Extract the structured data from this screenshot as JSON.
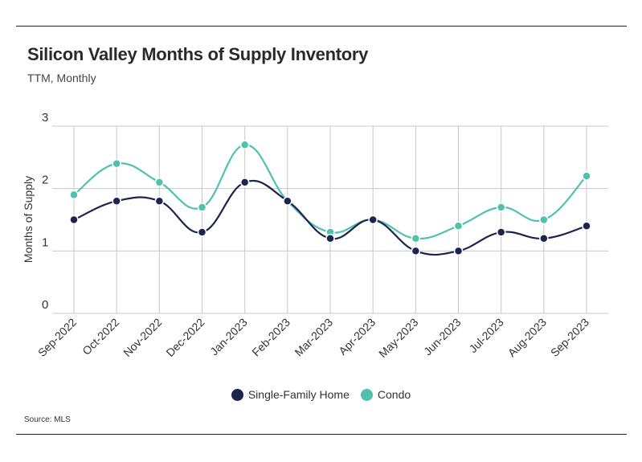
{
  "header": {
    "title": "Silicon Valley Months of Supply Inventory",
    "subtitle": "TTM, Monthly"
  },
  "footer": {
    "source": "Source:  MLS"
  },
  "colors": {
    "single_family": "#1b2550",
    "condo": "#4fc2ad",
    "grid": "#c8c8c8",
    "axis_text": "#333333"
  },
  "chart_data": {
    "type": "line",
    "title": "Silicon Valley Months of Supply Inventory",
    "subtitle": "TTM, Monthly",
    "xlabel": "",
    "ylabel": "Months of Supply",
    "ylim": [
      0,
      3
    ],
    "yticks": [
      0,
      1,
      2,
      3
    ],
    "grid": "on",
    "legend_position": "bottom",
    "categories": [
      "Sep-2022",
      "Oct-2022",
      "Nov-2022",
      "Dec-2022",
      "Jan-2023",
      "Feb-2023",
      "Mar-2023",
      "Apr-2023",
      "May-2023",
      "Jun-2023",
      "Jul-2023",
      "Aug-2023",
      "Sep-2023"
    ],
    "series": [
      {
        "name": "Single-Family Home",
        "color": "#1b2550",
        "values": [
          1.5,
          1.8,
          1.8,
          1.3,
          2.1,
          1.8,
          1.2,
          1.5,
          1.0,
          1.0,
          1.3,
          1.2,
          1.4
        ]
      },
      {
        "name": "Condo",
        "color": "#4fc2ad",
        "values": [
          1.9,
          2.4,
          2.1,
          1.7,
          2.7,
          1.8,
          1.3,
          1.5,
          1.2,
          1.4,
          1.7,
          1.5,
          2.2
        ]
      }
    ]
  }
}
